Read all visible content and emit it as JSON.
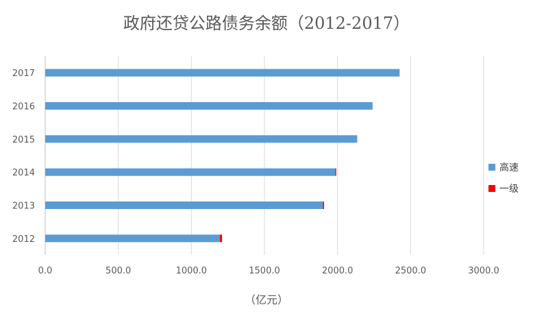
{
  "chart_data": {
    "type": "bar",
    "orientation": "horizontal",
    "stacked": true,
    "title": "政府还贷公路债务余额（2012-2017）",
    "xlabel": "（亿元）",
    "ylabel": "",
    "categories": [
      "2012",
      "2013",
      "2014",
      "2015",
      "2016",
      "2017"
    ],
    "series": [
      {
        "name": "高速",
        "color": "#5b9bd5",
        "values": [
          1195,
          1900,
          1985,
          2135,
          2240,
          2425
        ]
      },
      {
        "name": "一级",
        "color": "#ff0000",
        "values": [
          15,
          8,
          6,
          0,
          0,
          0
        ]
      }
    ],
    "xlim": [
      0,
      3000
    ],
    "xticks": [
      "0.0",
      "500.0",
      "1000.0",
      "1500.0",
      "2000.0",
      "2500.0",
      "3000.0"
    ],
    "grid": true,
    "legend_position": "right"
  }
}
